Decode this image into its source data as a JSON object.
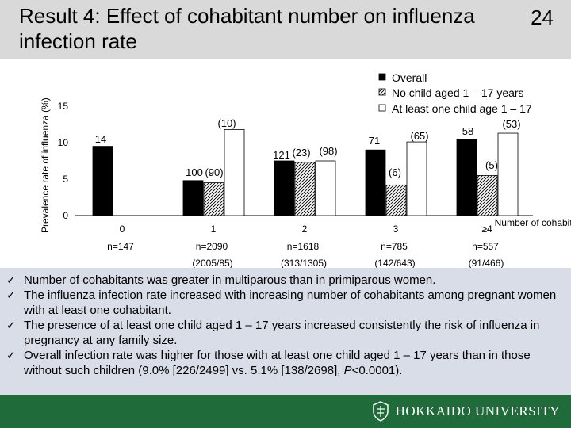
{
  "slide": {
    "title": "Result 4: Effect of cohabitant number on influenza infection rate",
    "number": "24"
  },
  "chart_data": {
    "type": "bar",
    "ylabel": "Prevalence rate of influenza (%)",
    "ylim": [
      0,
      18
    ],
    "yticks": [
      0,
      5,
      10,
      15
    ],
    "xlabel": "Number of cohabitants",
    "categories": [
      "0",
      "1",
      "2",
      "3",
      "≥4"
    ],
    "n_labels": [
      "n=147",
      "n=2090",
      "n=1618",
      "n=785",
      "n=557"
    ],
    "sub_labels": [
      "",
      "(2005/85)",
      "(313/1305)",
      "(142/643)",
      "(91/466)"
    ],
    "series": [
      {
        "name": "Overall",
        "pattern": "solid-black",
        "values": [
          9.5,
          4.8,
          7.5,
          9.0,
          10.4
        ],
        "labels": [
          "14",
          "",
          "121",
          "71",
          "58"
        ]
      },
      {
        "name": "No child aged 1 – 17 years",
        "pattern": "hatched",
        "values": [
          null,
          4.5,
          7.3,
          4.2,
          5.5
        ],
        "labels": [
          "",
          "100",
          "(23)",
          "(6)",
          "(5)"
        ]
      },
      {
        "name": "At least one child age 1 – 17",
        "pattern": "white",
        "values": [
          null,
          11.8,
          7.5,
          10.1,
          11.3
        ],
        "labels": [
          "",
          "(10)",
          "(98)",
          "(65)",
          "(53)"
        ]
      }
    ],
    "extra_labels": [
      "(90)"
    ]
  },
  "bullets": [
    "Number of cohabitants was greater in multiparous than in primiparous women.",
    "The influenza infection rate increased with increasing number of cohabitants among pregnant women with at least one cohabitant.",
    "The presence of at least one child aged 1 – 17 years increased consistently the risk of influenza in pregnancy at any family size.",
    "Overall infection rate was higher for those with at least one child aged 1 – 17 years than in those without such children (9.0% [226/2499] vs. 5.1% [138/2698], P<0.0001)."
  ],
  "check_glyph": "✓",
  "footer": {
    "university": "HOKKAIDO UNIVERSITY",
    "logo_icon": "hokkaido-crest-icon",
    "color": "#1f6b3a"
  }
}
